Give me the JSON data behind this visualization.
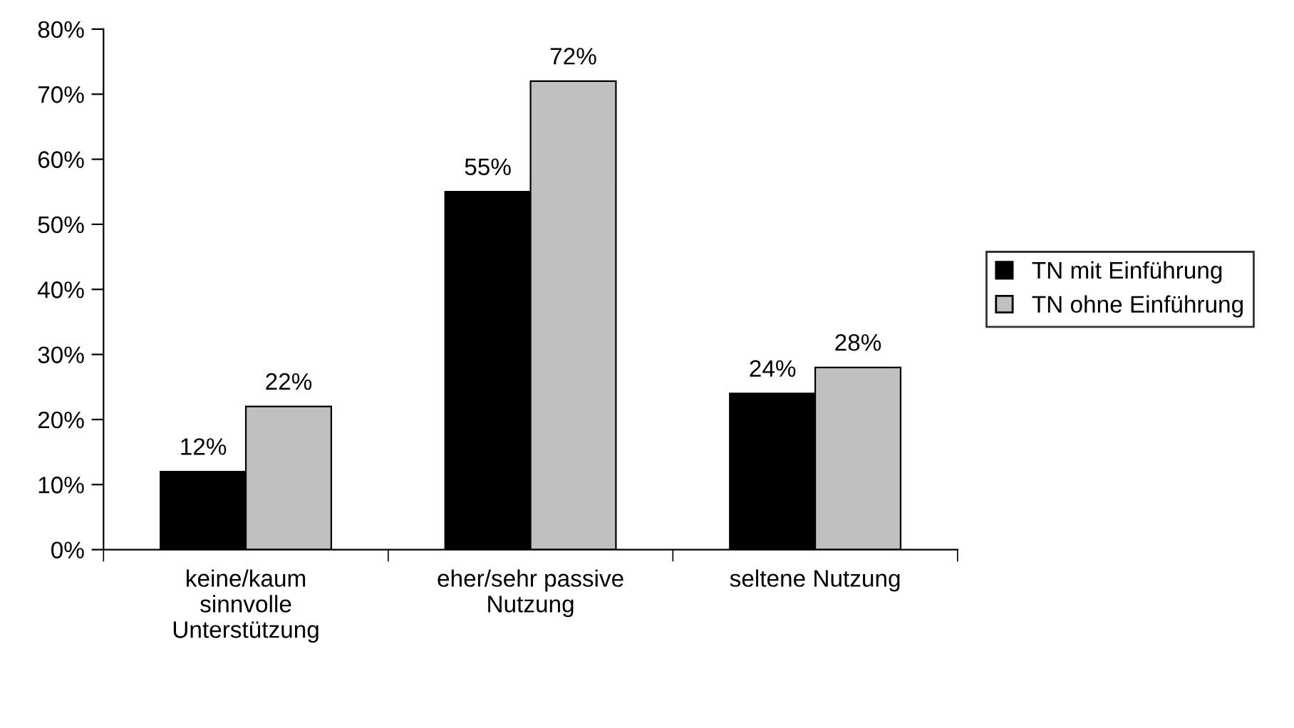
{
  "chart_data": {
    "type": "bar",
    "categories": [
      "keine/kaum\nsinnvolle\nUnterstützung",
      "eher/sehr passive\nNutzung",
      "seltene Nutzung"
    ],
    "series": [
      {
        "name": "TN mit Einführung",
        "color": "#000000",
        "values": [
          12,
          55,
          24
        ],
        "value_labels": [
          "12%",
          "55%",
          "24%"
        ]
      },
      {
        "name": "TN ohne Einführung",
        "color": "#c0c0c0",
        "values": [
          22,
          72,
          28
        ],
        "value_labels": [
          "22%",
          "72%",
          "28%"
        ]
      }
    ],
    "ylim": [
      0,
      80
    ],
    "yticks": [
      {
        "value": 0,
        "label": "0%"
      },
      {
        "value": 10,
        "label": "10%"
      },
      {
        "value": 20,
        "label": "20%"
      },
      {
        "value": 30,
        "label": "30%"
      },
      {
        "value": 40,
        "label": "40%"
      },
      {
        "value": 50,
        "label": "50%"
      },
      {
        "value": 60,
        "label": "60%"
      },
      {
        "value": 70,
        "label": "70%"
      },
      {
        "value": 80,
        "label": "80%"
      }
    ],
    "grid": false,
    "legend": "right"
  }
}
